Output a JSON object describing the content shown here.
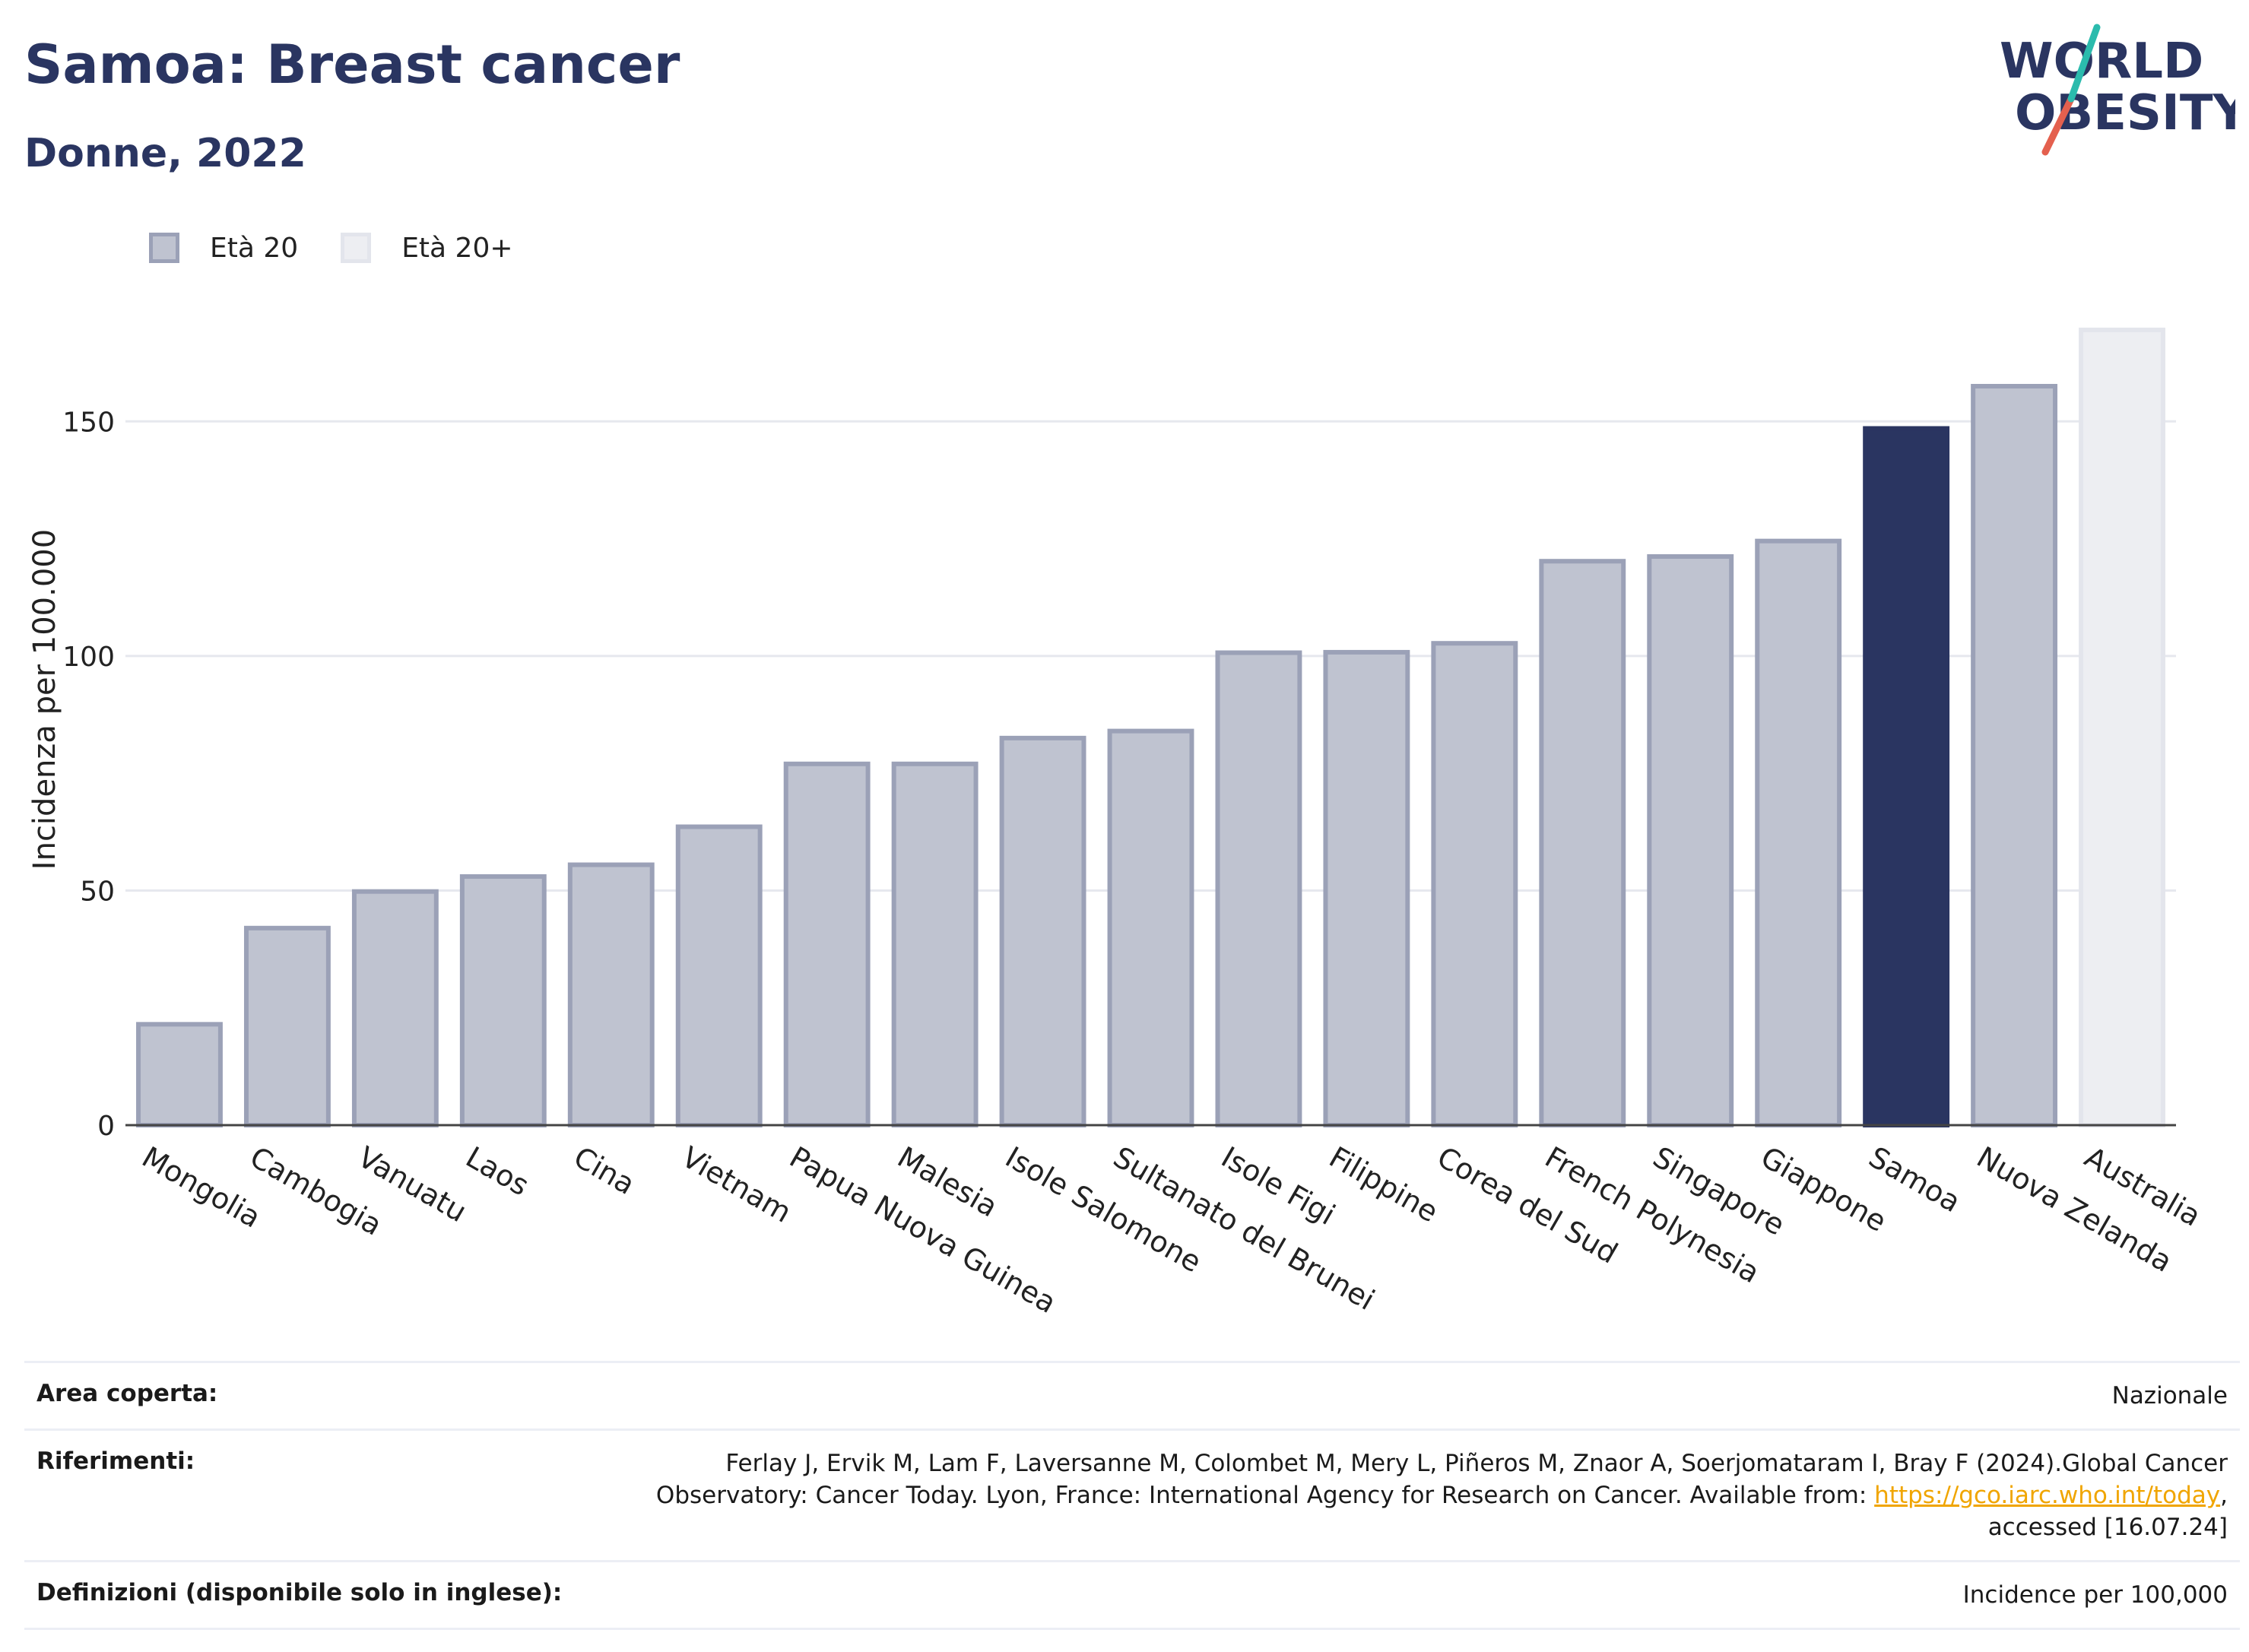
{
  "title": "Samoa: Breast cancer",
  "subtitle": "Donne, 2022",
  "logo": {
    "line1": "WORLD",
    "line2": "OBESITY",
    "color": "#2a3561",
    "accent_teal": "#2bbbad",
    "accent_red": "#e4604e"
  },
  "legend": [
    {
      "label": "Età 20",
      "fill": "#bfc3d0",
      "border": "#9ba1b7"
    },
    {
      "label": "Età 20+",
      "fill": "#edeef2",
      "border": "#e3e5ec"
    }
  ],
  "colors": {
    "highlight": "#2a3561",
    "bar": "#bfc3d0",
    "bar_border": "#9ba1b7",
    "light_bar": "#edeef2",
    "light_border": "#e3e5ec",
    "grid": "#e6e8ee",
    "axis": "#444444"
  },
  "chart_data": {
    "type": "bar",
    "ylabel": "Incidenza per 100.000",
    "ylim": [
      0,
      175
    ],
    "yticks": [
      0,
      50,
      100,
      150
    ],
    "grid": true,
    "legend_position": "top-left",
    "highlight": "Samoa",
    "categories": [
      "Mongolia",
      "Cambogia",
      "Vanuatu",
      "Laos",
      "Cina",
      "Vietnam",
      "Papua Nuova Guinea",
      "Malesia",
      "Isole Salomone",
      "Sultanato del Brunei",
      "Isole Figi",
      "Filippine",
      "Corea del Sud",
      "French Polynesia",
      "Singapore",
      "Giappone",
      "Samoa",
      "Nuova Zelanda",
      "Australia"
    ],
    "series": [
      {
        "name": "Età 20",
        "values": [
          21.5,
          42,
          49.8,
          53,
          55.5,
          63.6,
          77,
          77,
          82.5,
          84,
          100.7,
          100.8,
          102.7,
          120.2,
          121.2,
          124.5,
          148.5,
          157.5,
          null
        ]
      },
      {
        "name": "Età 20+",
        "values": [
          null,
          null,
          null,
          null,
          null,
          null,
          null,
          null,
          null,
          null,
          null,
          null,
          null,
          null,
          null,
          null,
          null,
          null,
          169.5
        ]
      }
    ]
  },
  "info": {
    "area_label": "Area coperta:",
    "area_value": "Nazionale",
    "ref_label": "Riferimenti:",
    "ref_line1": "Ferlay J, Ervik M, Lam F, Laversanne M, Colombet M, Mery L, Piñeros M, Znaor A, Soerjomataram I, Bray F (2024).Global Cancer",
    "ref_line2_pre": "Observatory: Cancer Today. Lyon, France: International Agency for Research on Cancer. Available from: ",
    "ref_link": "https://gco.iarc.who.int/today",
    "ref_line2_post": ",",
    "ref_line3": "accessed [16.07.24]",
    "def_label": "Definizioni (disponibile solo in inglese):",
    "def_value": "Incidence per 100,000"
  }
}
